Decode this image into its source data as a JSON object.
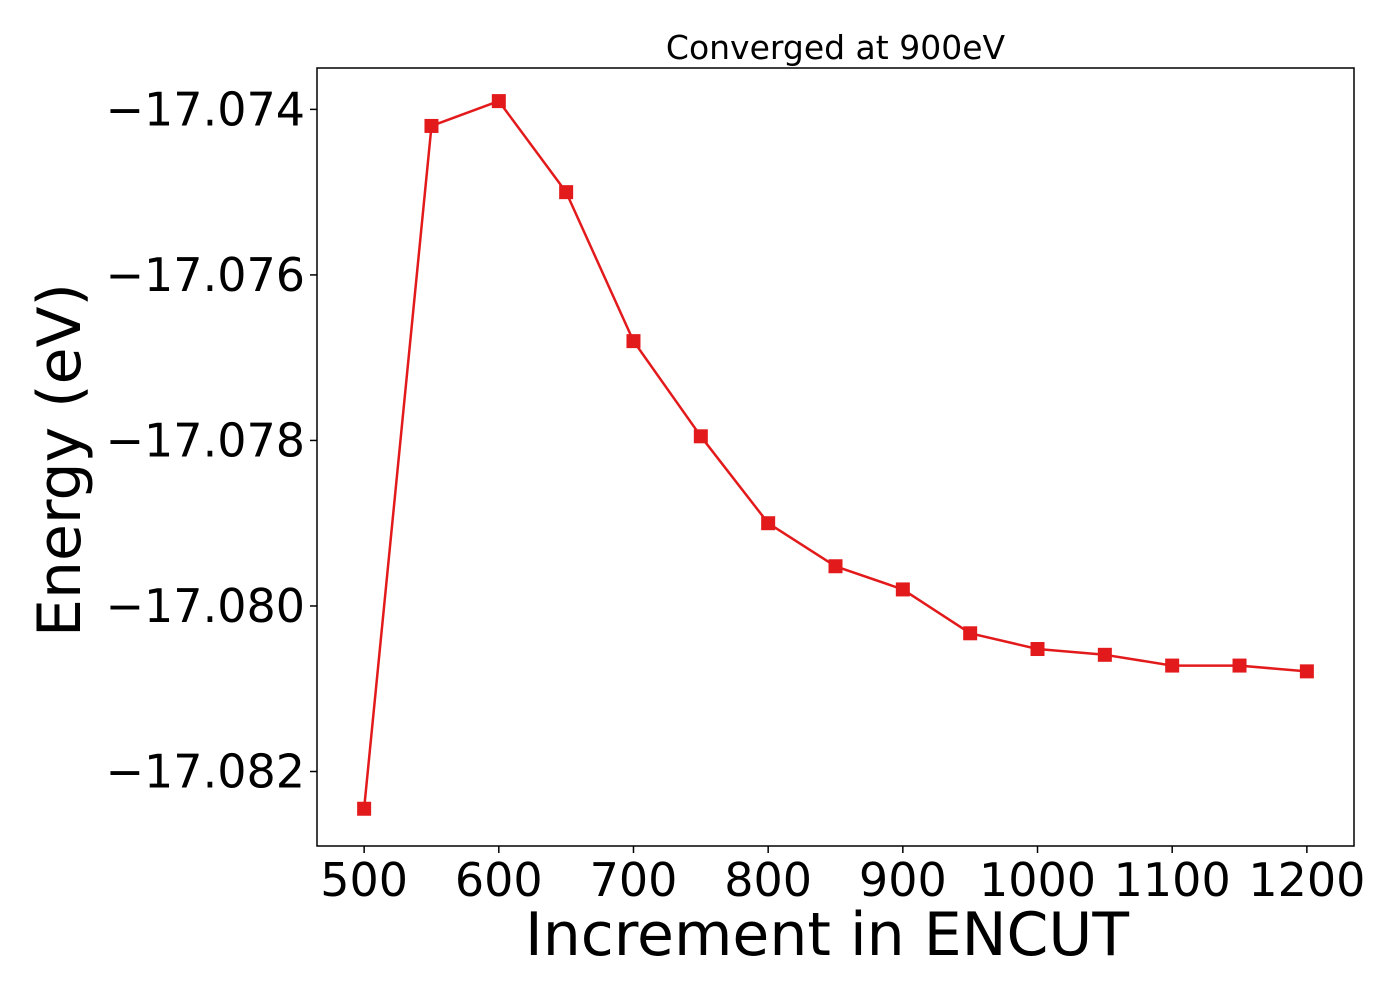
{
  "chart_data": {
    "type": "line",
    "title": "Converged at 900eV",
    "xlabel": "Increment in ENCUT",
    "ylabel": "Energy (eV)",
    "xlim": [
      465,
      1235
    ],
    "ylim": [
      -17.0829,
      -17.0735
    ],
    "x_ticks": [
      500,
      600,
      700,
      800,
      900,
      1000,
      1100,
      1200
    ],
    "x_tick_labels": [
      "500",
      "600",
      "700",
      "800",
      "900",
      "1000",
      "1100",
      "1200"
    ],
    "y_ticks": [
      -17.082,
      -17.08,
      -17.078,
      -17.076,
      -17.074
    ],
    "y_tick_labels": [
      "−17.082",
      "−17.080",
      "−17.078",
      "−17.076",
      "−17.074"
    ],
    "grid": false,
    "series": [
      {
        "color": "#e31a1c",
        "marker": "square",
        "x": [
          500,
          550,
          600,
          650,
          700,
          750,
          800,
          850,
          900,
          950,
          1000,
          1050,
          1100,
          1150,
          1200
        ],
        "y": [
          -17.08245,
          -17.0742,
          -17.0739,
          -17.075,
          -17.0768,
          -17.07795,
          -17.079,
          -17.07952,
          -17.0798,
          -17.08033,
          -17.08052,
          -17.08059,
          -17.08072,
          -17.08072,
          -17.08079
        ]
      }
    ]
  }
}
